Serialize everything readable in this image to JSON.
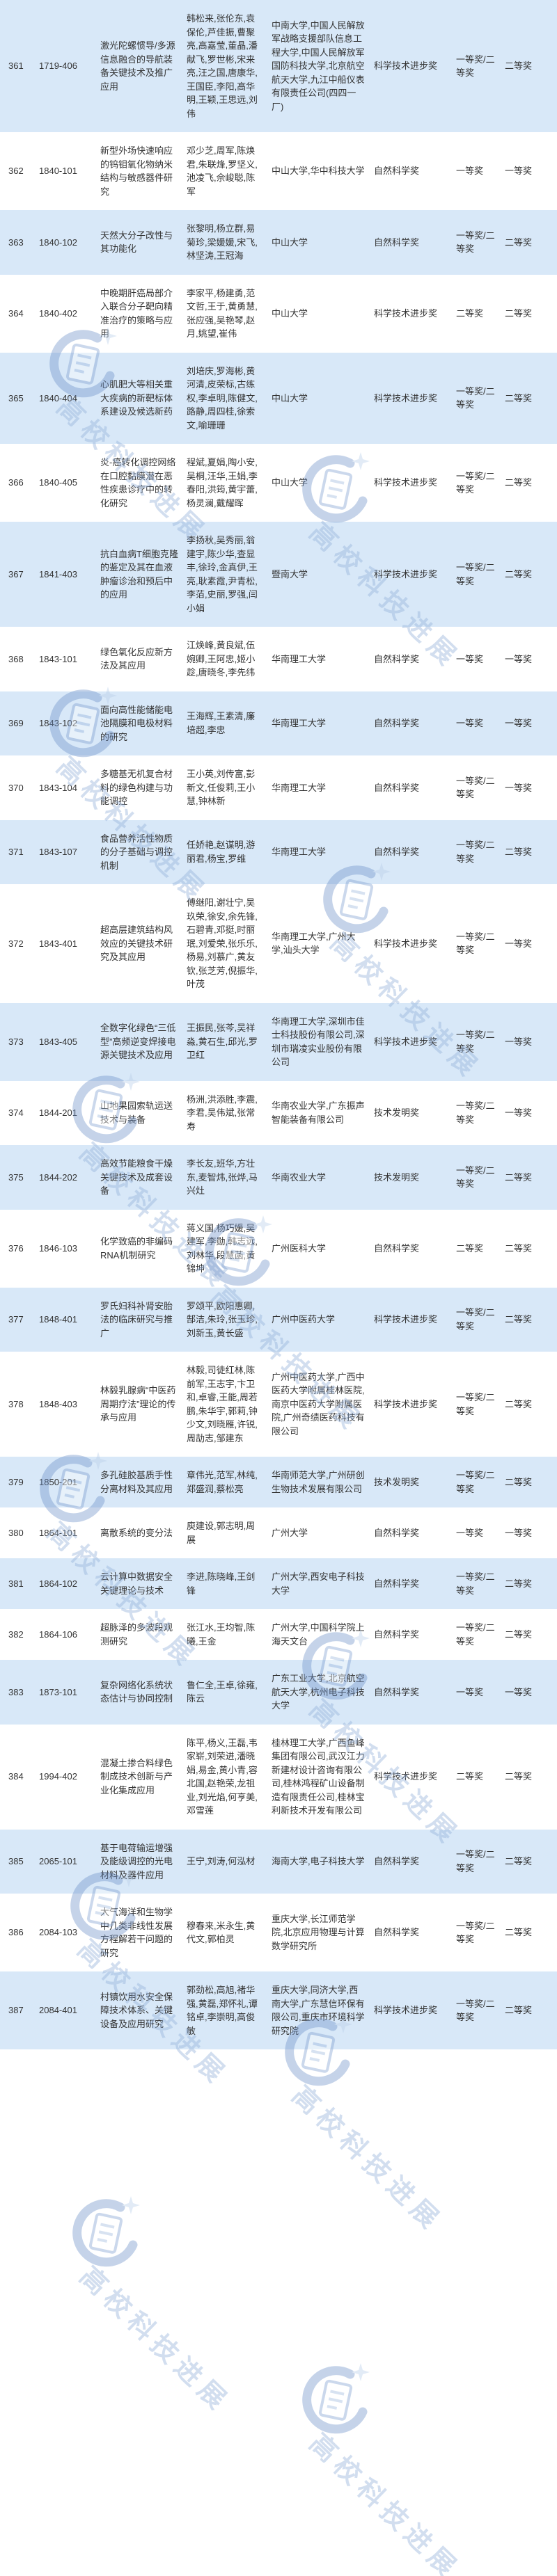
{
  "watermark": {
    "text": "高校科技进展"
  },
  "colors": {
    "row_alt_background": "#d8e8f8",
    "row_background": "#ffffff",
    "text": "#333333",
    "watermark_blue": "#94b1d8"
  },
  "table": {
    "rows": [
      {
        "no": "361",
        "code": "1719-406",
        "title": "激光陀螺惯导/多源信息融合的导航装备关键技术及推广应用",
        "people": "韩松来,张伦东,袁保伦,芦佳振,曹聚亮,高嘉莹,董晶,潘献飞,罗世彬,宋来亮,汪之国,唐康华,王国臣,李阳,高华明,王颖,王思远,刘伟",
        "orgs": "中南大学,中国人民解放军战略支援部队信息工程大学,中国人民解放军国防科技大学,北京航空航天大学,九江中船仪表有限责任公司(四四一厂)",
        "award": "科学技术进步奖",
        "rec": "一等奖/二等奖",
        "final": "二等奖"
      },
      {
        "no": "362",
        "code": "1840-101",
        "title": "新型外场快速响应的钨钼氧化物纳米结构与敏感器件研究",
        "people": "邓少芝,周军,陈焕君,朱联烽,罗坚义,池凌飞,佘峻聪,陈军",
        "orgs": "中山大学,华中科技大学",
        "award": "自然科学奖",
        "rec": "一等奖",
        "final": "一等奖"
      },
      {
        "no": "363",
        "code": "1840-102",
        "title": "天然大分子改性与其功能化",
        "people": "张黎明,杨立群,易菊珍,梁媛媛,宋飞,林坚涛,王冠海",
        "orgs": "中山大学",
        "award": "自然科学奖",
        "rec": "一等奖/二等奖",
        "final": "二等奖"
      },
      {
        "no": "364",
        "code": "1840-402",
        "title": "中晚期肝癌局部介入联合分子靶向精准治疗的策略与应用",
        "people": "李家平,杨建勇,范文哲,王于,黄勇慧,张应强,吴艳琴,赵月,姚望,崔伟",
        "orgs": "中山大学",
        "award": "科学技术进步奖",
        "rec": "二等奖",
        "final": "二等奖"
      },
      {
        "no": "365",
        "code": "1840-404",
        "title": "心肌肥大等相关重大疾病的新靶标体系建设及候选新药",
        "people": "刘培庆,罗海彬,黄河清,皮荣标,古练权,李卓明,陈健文,路静,周四桂,徐索文,喻珊珊",
        "orgs": "中山大学",
        "award": "科学技术进步奖",
        "rec": "一等奖/二等奖",
        "final": "二等奖"
      },
      {
        "no": "366",
        "code": "1840-405",
        "title": "炎-癌转化调控网络在口腔黏膜潜在恶性疾患诊疗中的转化研究",
        "people": "程斌,夏娟,陶小安,吴桐,汪华,王娟,李春阳,洪筠,黄宇蕾,杨灵澜,戴耀晖",
        "orgs": "中山大学",
        "award": "科学技术进步奖",
        "rec": "一等奖/二等奖",
        "final": "二等奖"
      },
      {
        "no": "367",
        "code": "1841-403",
        "title": "抗白血病T细胞克隆的鉴定及其在血液肿瘤诊治和预后中的应用",
        "people": "李扬秋,吴秀丽,翁建宇,陈少华,查显丰,徐玲,金真伊,王亮,耿素霞,尹青松,李萡,史丽,罗强,闫小娟",
        "orgs": "暨南大学",
        "award": "科学技术进步奖",
        "rec": "一等奖/二等奖",
        "final": "二等奖"
      },
      {
        "no": "368",
        "code": "1843-101",
        "title": "绿色氧化反应新方法及其应用",
        "people": "江焕峰,黄良斌,伍婉卿,王阿忠,姬小趁,唐晓冬,李先纬",
        "orgs": "华南理工大学",
        "award": "自然科学奖",
        "rec": "一等奖",
        "final": "一等奖"
      },
      {
        "no": "369",
        "code": "1843-102",
        "title": "面向高性能储能电池隔膜和电极材料的研究",
        "people": "王海辉,王素清,廉培超,李忠",
        "orgs": "华南理工大学",
        "award": "自然科学奖",
        "rec": "一等奖",
        "final": "一等奖"
      },
      {
        "no": "370",
        "code": "1843-104",
        "title": "多糖基无机复合材料的绿色构建与功能调控",
        "people": "王小英,刘传富,彭新文,任俊莉,王小慧,钟林新",
        "orgs": "华南理工大学",
        "award": "自然科学奖",
        "rec": "一等奖/二等奖",
        "final": "一等奖"
      },
      {
        "no": "371",
        "code": "1843-107",
        "title": "食品营养活性物质的分子基础与调控机制",
        "people": "任娇艳,赵谋明,游丽君,杨宝,罗维",
        "orgs": "华南理工大学",
        "award": "自然科学奖",
        "rec": "一等奖/二等奖",
        "final": "二等奖"
      },
      {
        "no": "372",
        "code": "1843-401",
        "title": "超高层建筑结构风效应的关键技术研究及其应用",
        "people": "傅继阳,谢壮宁,吴玖荣,徐安,余先锋,石碧青,邓挺,时丽珉,刘爱荣,张乐乐,杨易,刘慕广,黄友钦,张芝芳,倪振华,叶茂",
        "orgs": "华南理工大学,广州大学,汕头大学",
        "award": "科学技术进步奖",
        "rec": "一等奖/二等奖",
        "final": "一等奖"
      },
      {
        "no": "373",
        "code": "1843-405",
        "title": "全数字化绿色“三低型”高频逆变焊接电源关键技术及应用",
        "people": "王振民,张芩,吴祥淼,黄石生,邱光,罗卫红",
        "orgs": "华南理工大学,深圳市佳士科技股份有限公司,深圳市瑞凌实业股份有限公司",
        "award": "科学技术进步奖",
        "rec": "一等奖/二等奖",
        "final": "一等奖"
      },
      {
        "no": "374",
        "code": "1844-201",
        "title": "山地果园索轨运送技术与装备",
        "people": "杨洲,洪添胜,李震,李君,吴伟斌,张常寿",
        "orgs": "华南农业大学,广东振声智能装备有限公司",
        "award": "技术发明奖",
        "rec": "一等奖/二等奖",
        "final": "一等奖"
      },
      {
        "no": "375",
        "code": "1844-202",
        "title": "高效节能粮食干燥关键技术及成套设备",
        "people": "李长友,班华,方壮东,麦智炜,张烨,马兴灶",
        "orgs": "华南农业大学",
        "award": "技术发明奖",
        "rec": "一等奖/二等奖",
        "final": "二等奖"
      },
      {
        "no": "376",
        "code": "1846-103",
        "title": "化学致癌的非编码RNA机制研究",
        "people": "蒋义国,杨巧媛,吴建军,李勋,韩志远,刘林华,段慧菡,黄锦坤",
        "orgs": "广州医科大学",
        "award": "自然科学奖",
        "rec": "二等奖",
        "final": "二等奖"
      },
      {
        "no": "377",
        "code": "1848-401",
        "title": "罗氏妇科补肾安胎法的临床研究与推广",
        "people": "罗颂平,欧阳惠卿,郜洁,朱玲,张玉珍,刘新玉,黄长盛",
        "orgs": "广州中医药大学",
        "award": "科学技术进步奖",
        "rec": "一等奖/二等奖",
        "final": "二等奖"
      },
      {
        "no": "378",
        "code": "1848-403",
        "title": "林毅乳腺病“中医药周期疗法”理论的传承与应用",
        "people": "林毅,司徒红林,陈前军,王志宇,卞卫和,卓睿,王能,周若鹏,朱华宇,郭莉,钟少文,刘晓雁,许锐,周劼志,邹建东",
        "orgs": "广州中医药大学,广西中医药大学附属桂林医院,南京中医药大学附属医院,广州奇绩医药科技有限公司",
        "award": "科学技术进步奖",
        "rec": "一等奖/二等奖",
        "final": "二等奖"
      },
      {
        "no": "379",
        "code": "1850-201",
        "title": "多孔硅胶基质手性分离材料及其应用",
        "people": "章伟光,范军,林纯,郑盛润,蔡松亮",
        "orgs": "华南师范大学,广州研创生物技术发展有限公司",
        "award": "技术发明奖",
        "rec": "一等奖/二等奖",
        "final": "二等奖"
      },
      {
        "no": "380",
        "code": "1864-101",
        "title": "离散系统的变分法",
        "people": "庾建设,郭志明,周展",
        "orgs": "广州大学",
        "award": "自然科学奖",
        "rec": "一等奖",
        "final": "一等奖"
      },
      {
        "no": "381",
        "code": "1864-102",
        "title": "云计算中数据安全关键理论与技术",
        "people": "李进,陈晓峰,王剑锋",
        "orgs": "广州大学,西安电子科技大学",
        "award": "自然科学奖",
        "rec": "一等奖/二等奖",
        "final": "二等奖"
      },
      {
        "no": "382",
        "code": "1864-106",
        "title": "超脉泽的多波段观测研究",
        "people": "张江水,王均智,陈曦,王金",
        "orgs": "广州大学,中国科学院上海天文台",
        "award": "自然科学奖",
        "rec": "一等奖/二等奖",
        "final": "二等奖"
      },
      {
        "no": "383",
        "code": "1873-101",
        "title": "复杂网络化系统状态估计与协同控制",
        "people": "鲁仁全,王卓,徐雍,陈云",
        "orgs": "广东工业大学,北京航空航天大学,杭州电子科技大学",
        "award": "自然科学奖",
        "rec": "一等奖",
        "final": "一等奖"
      },
      {
        "no": "384",
        "code": "1994-402",
        "title": "混凝土掺合料绿色制成技术创新与产业化集成应用",
        "people": "陈平,杨义,王磊,韦家崭,刘荣进,潘晓娟,易金,黄小青,容北国,赵艳荣,龙祖业,刘光焰,何亨美,邓雪莲",
        "orgs": "桂林理工大学,广西鱼峰集团有限公司,武汉江力新建材设计咨询有限公司,桂林鸿程矿山设备制造有限责任公司,桂林宝利新技术开发有限公司",
        "award": "科学技术进步奖",
        "rec": "二等奖",
        "final": "二等奖"
      },
      {
        "no": "385",
        "code": "2065-101",
        "title": "基于电荷输运增强及能级调控的光电材料及器件应用",
        "people": "王宁,刘涛,何泓材",
        "orgs": "海南大学,电子科技大学",
        "award": "自然科学奖",
        "rec": "一等奖/二等奖",
        "final": "二等奖"
      },
      {
        "no": "386",
        "code": "2084-103",
        "title": "大气海洋和生物学中几类非线性发展方程解若干问题的研究",
        "people": "穆春来,米永生,黄代文,郭柏灵",
        "orgs": "重庆大学,长江师范学院,北京应用物理与计算数学研究所",
        "award": "自然科学奖",
        "rec": "一等奖/二等奖",
        "final": "二等奖"
      },
      {
        "no": "387",
        "code": "2084-401",
        "title": "村镇饮用水安全保障技术体系、关键设备及应用研究",
        "people": "郭劲松,高旭,褚华强,黄磊,郑怀礼,谭铭卓,李崇明,高俊敏",
        "orgs": "重庆大学,同济大学,西南大学,广东慧信环保有限公司,重庆市环境科学研究院",
        "award": "科学技术进步奖",
        "rec": "一等奖/二等奖",
        "final": "二等奖"
      }
    ]
  }
}
